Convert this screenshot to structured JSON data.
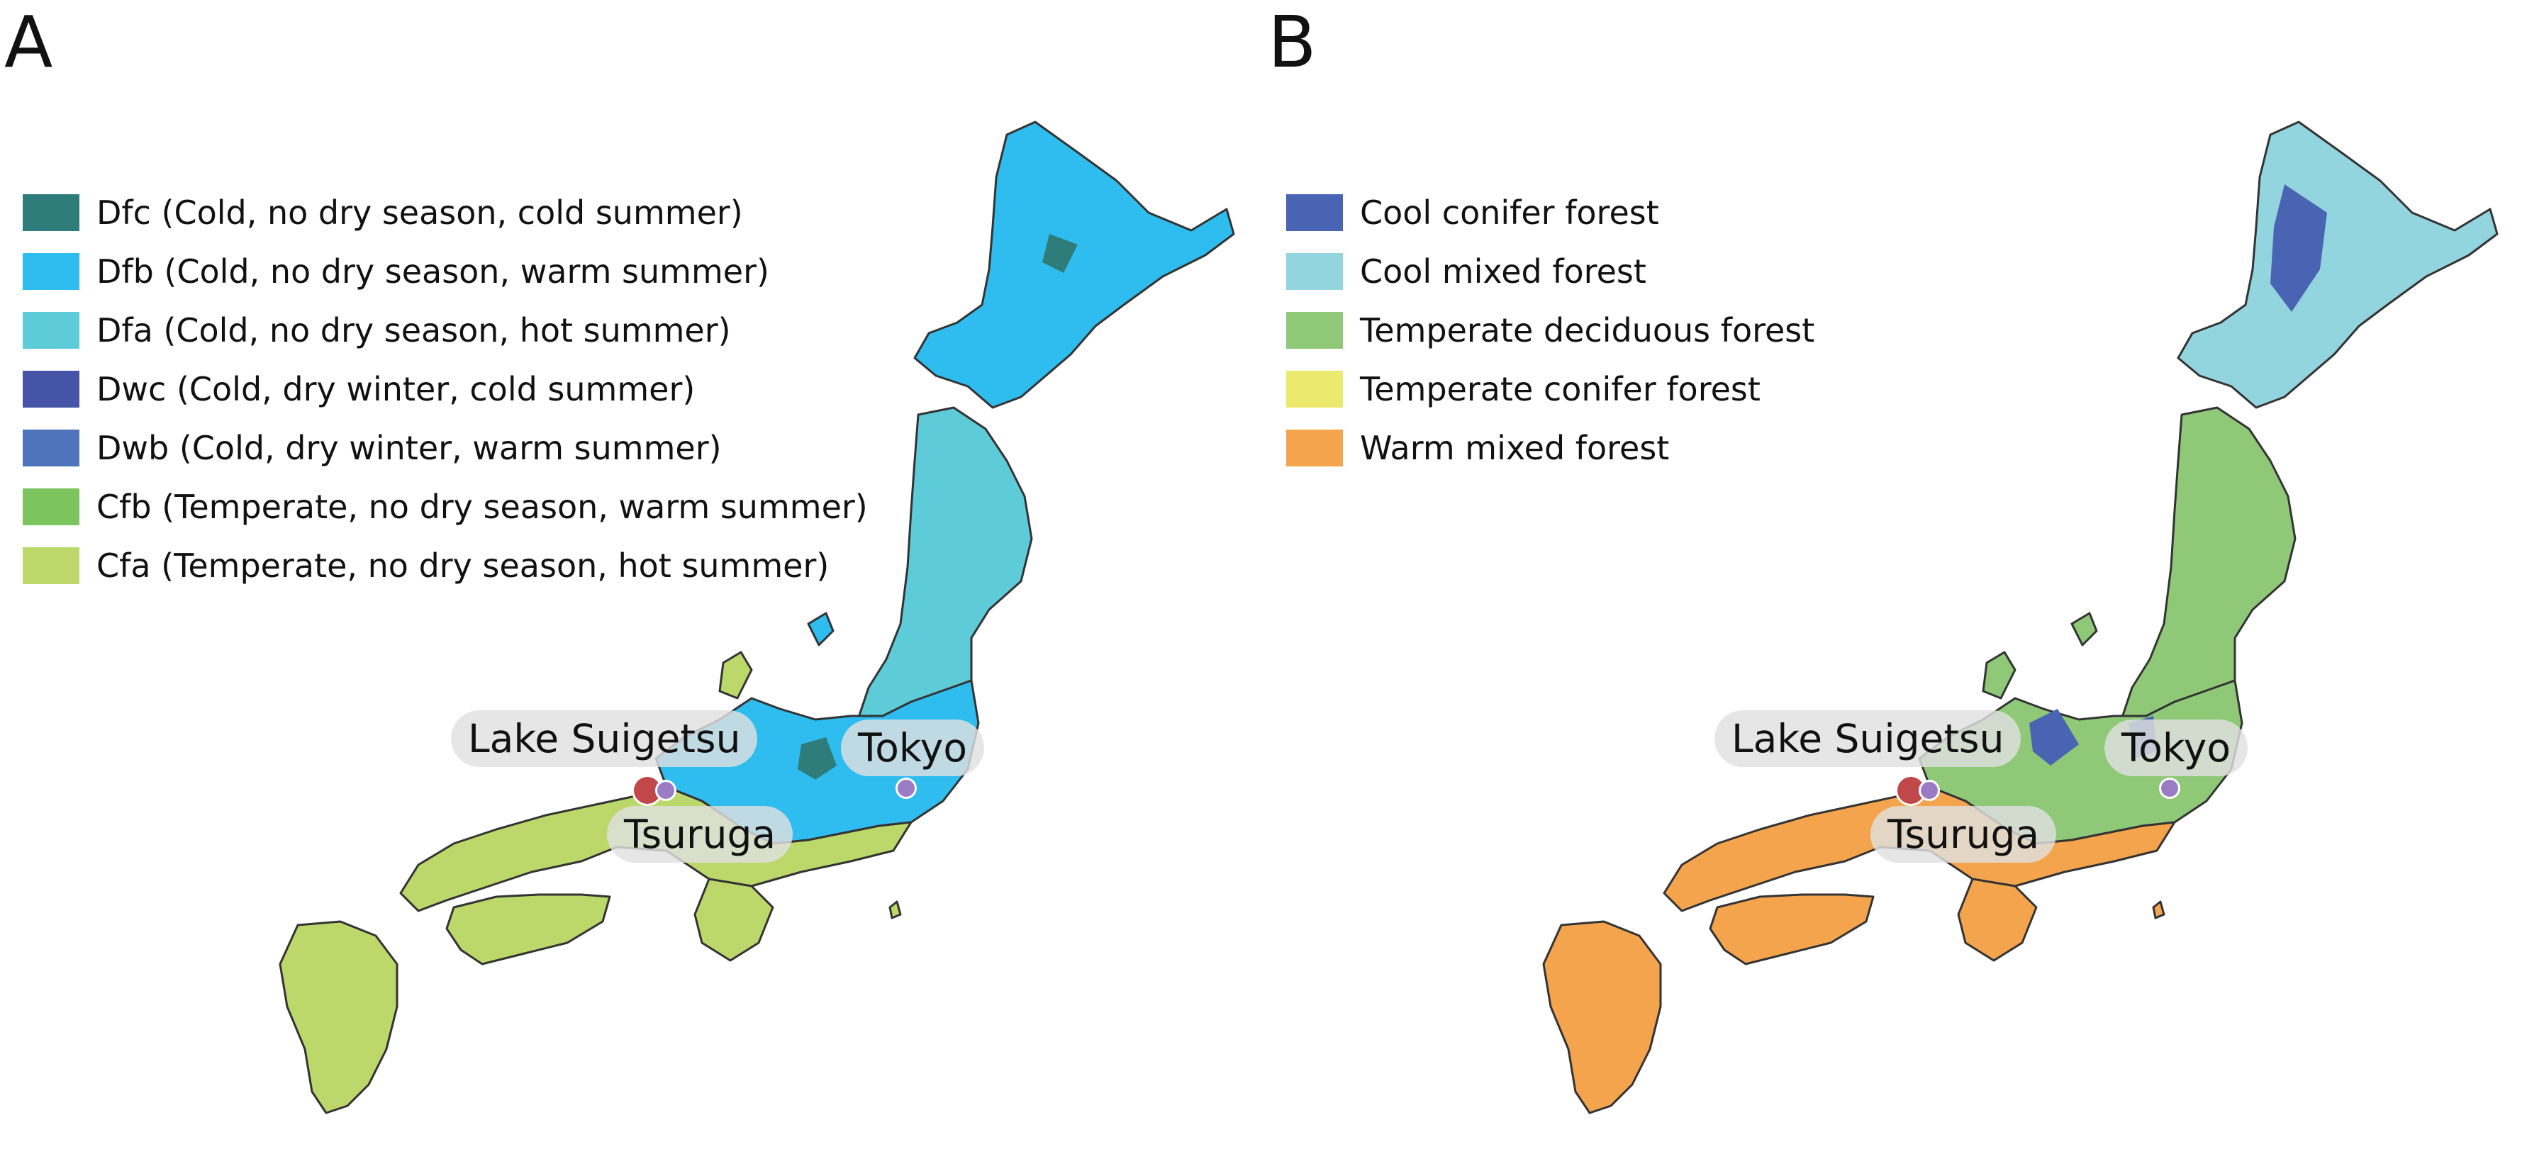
{
  "panels": [
    {
      "letter": "A",
      "legend": [
        {
          "label": "Dfc (Cold, no dry season, cold summer)",
          "color": "#2e7d7b"
        },
        {
          "label": "Dfb (Cold, no dry season, warm summer)",
          "color": "#2ebdee"
        },
        {
          "label": "Dfa (Cold, no dry season, hot summer)",
          "color": "#5ecbd8"
        },
        {
          "label": "Dwc (Cold, dry winter, cold summer)",
          "color": "#4654a8"
        },
        {
          "label": "Dwb (Cold, dry winter, warm summer)",
          "color": "#5074bc"
        },
        {
          "label": "Cfb (Temperate, no dry season, warm summer)",
          "color": "#7cc45e"
        },
        {
          "label": "Cfa (Temperate, no dry season, hot summer)",
          "color": "#bcd86a"
        }
      ],
      "map_colors": {
        "north": "#2ebdee",
        "honshu_north": "#5ecbd8",
        "central": "#2ebdee",
        "south": "#bcd86a",
        "patch": "#2e7d7b"
      },
      "places": {
        "lake": "Lake Suigetsu",
        "tokyo": "Tokyo",
        "tsuruga": "Tsuruga"
      }
    },
    {
      "letter": "B",
      "legend": [
        {
          "label": "Cool conifer forest",
          "color": "#4a64b4"
        },
        {
          "label": "Cool mixed forest",
          "color": "#92d5de"
        },
        {
          "label": "Temperate deciduous forest",
          "color": "#8fc978"
        },
        {
          "label": "Temperate conifer forest",
          "color": "#ebea6e"
        },
        {
          "label": "Warm mixed forest",
          "color": "#f4a44c"
        }
      ],
      "map_colors": {
        "north": "#92d5de",
        "honshu_north": "#8fc978",
        "central": "#8fc978",
        "south": "#f4a44c",
        "patch": "#4a64b4"
      },
      "places": {
        "lake": "Lake Suigetsu",
        "tokyo": "Tokyo",
        "tsuruga": "Tsuruga"
      }
    }
  ],
  "site_colors": {
    "lake_suigetsu": "#c0474a",
    "tsuruga": "#9a7cc4",
    "tokyo": "#9a7cc4"
  }
}
